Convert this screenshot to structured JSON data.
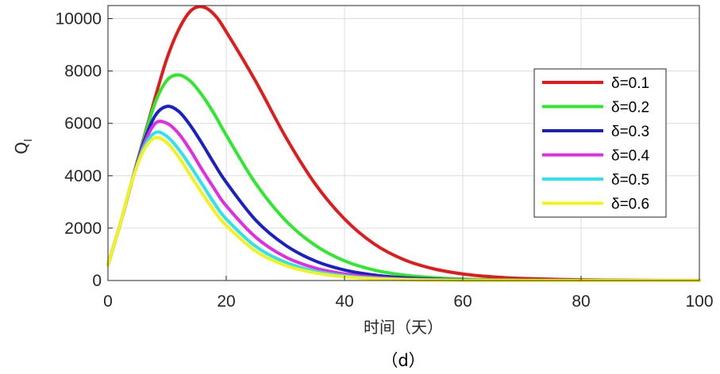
{
  "chart_data": {
    "type": "line",
    "title": "",
    "caption": "（d）",
    "xlabel": "时间（天）",
    "ylabel_main": "Q",
    "ylabel_sub": "I",
    "xlim": [
      0,
      100
    ],
    "ylim": [
      0,
      10500
    ],
    "xticks": [
      0,
      20,
      40,
      60,
      80,
      100
    ],
    "yticks": [
      0,
      2000,
      4000,
      6000,
      8000,
      10000
    ],
    "grid": true,
    "legend_position": "right",
    "x": [
      0,
      2,
      4,
      6,
      8,
      10,
      12,
      14,
      16,
      18,
      20,
      25,
      30,
      35,
      40,
      45,
      50,
      55,
      60,
      65,
      70,
      80,
      90,
      100
    ],
    "series": [
      {
        "name": "δ=0.1",
        "color": "#e31a1c",
        "values": [
          600,
          2100,
          3750,
          5400,
          7000,
          8500,
          9600,
          10300,
          10450,
          10150,
          9500,
          7600,
          5500,
          3700,
          2350,
          1400,
          800,
          450,
          250,
          140,
          80,
          25,
          8,
          3
        ]
      },
      {
        "name": "δ=0.2",
        "color": "#2ee82e",
        "values": [
          600,
          2100,
          3750,
          5350,
          6800,
          7650,
          7850,
          7600,
          7050,
          6350,
          5550,
          3700,
          2300,
          1350,
          750,
          400,
          210,
          110,
          55,
          28,
          14,
          4,
          1,
          0
        ]
      },
      {
        "name": "δ=0.3",
        "color": "#1a1fc9",
        "values": [
          600,
          2100,
          3750,
          5250,
          6300,
          6650,
          6450,
          5900,
          5200,
          4450,
          3750,
          2300,
          1350,
          750,
          400,
          210,
          105,
          52,
          25,
          12,
          6,
          1,
          0,
          0
        ]
      },
      {
        "name": "δ=0.4",
        "color": "#e22be2",
        "values": [
          600,
          2100,
          3750,
          5150,
          6000,
          6000,
          5600,
          4950,
          4200,
          3500,
          2850,
          1650,
          900,
          480,
          250,
          125,
          60,
          28,
          13,
          6,
          3,
          0,
          0,
          0
        ]
      },
      {
        "name": "δ=0.5",
        "color": "#2ee4ec",
        "values": [
          600,
          2100,
          3750,
          5050,
          5650,
          5500,
          5000,
          4350,
          3650,
          2950,
          2350,
          1300,
          700,
          360,
          180,
          88,
          42,
          20,
          9,
          4,
          2,
          0,
          0,
          0
        ]
      },
      {
        "name": "δ=0.6",
        "color": "#f4f21c",
        "values": [
          600,
          2100,
          3750,
          4950,
          5450,
          5250,
          4700,
          4000,
          3300,
          2650,
          2100,
          1120,
          580,
          290,
          140,
          68,
          32,
          15,
          7,
          3,
          1,
          0,
          0,
          0
        ]
      }
    ]
  }
}
